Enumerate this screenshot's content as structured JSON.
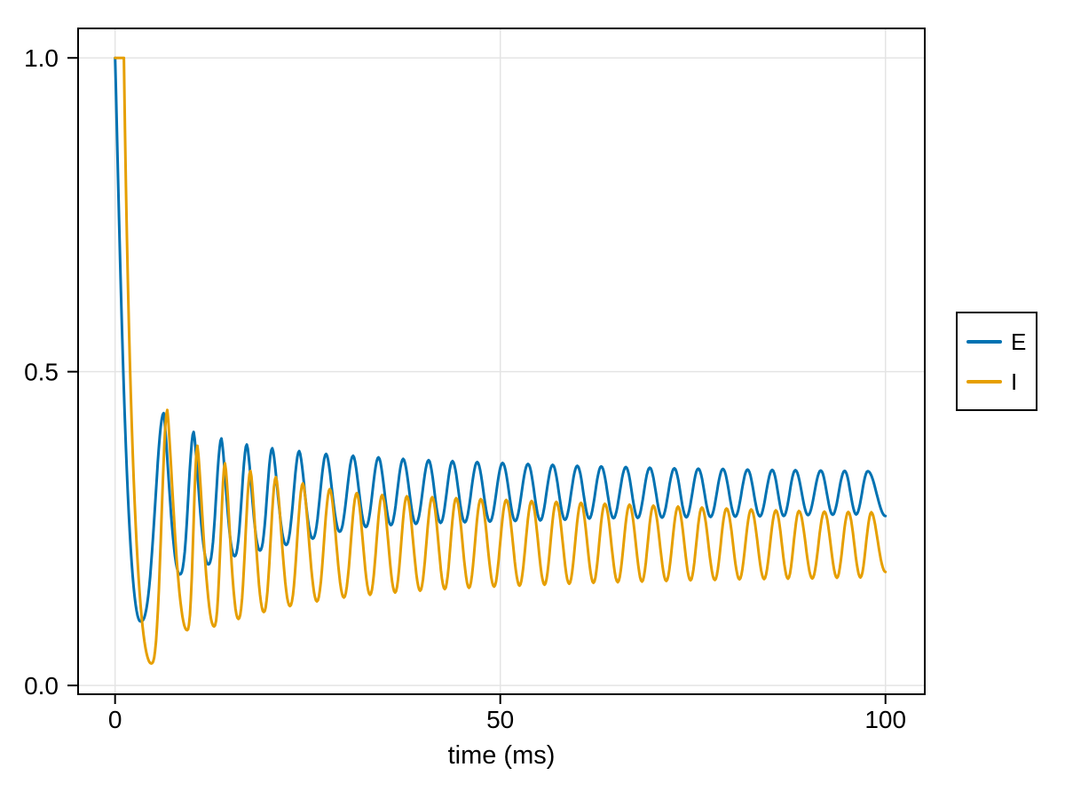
{
  "chart_data": {
    "type": "line",
    "title": "",
    "xlabel": "time (ms)",
    "ylabel": "",
    "xlim": [
      -4.8,
      105.1
    ],
    "ylim": [
      -0.014,
      1.047
    ],
    "xticks": {
      "values": [
        0,
        50,
        100
      ],
      "labels": [
        "0",
        "50",
        "100"
      ]
    },
    "yticks": {
      "values": [
        0.0,
        0.5,
        1.0
      ],
      "labels": [
        "0.0",
        "0.5",
        "1.0"
      ]
    },
    "grid": true,
    "grid_color": "#e4e4e4",
    "spine_color": "#000000",
    "tick_color": "#000000",
    "background": "#ffffff",
    "legend": {
      "position": "right-outside",
      "border_color": "#000000",
      "background": "#ffffff",
      "entries": [
        {
          "label": "E",
          "color": "#0072B2"
        },
        {
          "label": "I",
          "color": "#E69F00"
        }
      ]
    },
    "series": [
      {
        "name": "E",
        "color": "#0072B2",
        "line_width": 3,
        "keypoints": [
          [
            0,
            1.0
          ],
          [
            3.3,
            0.102,
            0.55
          ],
          [
            6.3,
            0.434,
            1.35
          ],
          [
            8.4,
            0.177,
            0.7
          ],
          [
            10.2,
            0.404,
            1.3
          ],
          [
            12.1,
            0.193,
            0.72
          ],
          [
            13.8,
            0.3935,
            1.25
          ],
          [
            15.5,
            0.206,
            0.75
          ],
          [
            17.1,
            0.384,
            1.2
          ],
          [
            18.8,
            0.215,
            0.78
          ],
          [
            20.4,
            0.378,
            1.17
          ],
          [
            22.2,
            0.224,
            0.8
          ],
          [
            23.9,
            0.3735,
            1.14
          ],
          [
            25.65,
            0.234,
            0.84
          ],
          [
            27.4,
            0.369,
            1.1
          ],
          [
            29.15,
            0.245,
            0.88
          ],
          [
            30.9,
            0.366,
            1.08
          ],
          [
            32.55,
            0.2525,
            0.9
          ],
          [
            34.2,
            0.3635,
            1.06
          ],
          [
            35.8,
            0.2555,
            0.93
          ],
          [
            37.4,
            0.361,
            1.05
          ],
          [
            39.05,
            0.2575,
            0.95
          ],
          [
            40.7,
            0.359,
            1.04
          ],
          [
            42.25,
            0.259,
            0.96
          ],
          [
            43.8,
            0.3575,
            1.03
          ],
          [
            45.4,
            0.26,
            0.97
          ],
          [
            47,
            0.356,
            1.02
          ],
          [
            48.65,
            0.261,
            0.98
          ],
          [
            50.3,
            0.3545,
            1.01
          ],
          [
            51.95,
            0.262
          ],
          [
            53.6,
            0.353
          ],
          [
            55.2,
            0.263
          ],
          [
            56.8,
            0.3515
          ],
          [
            58.4,
            0.264
          ],
          [
            60,
            0.35
          ],
          [
            61.55,
            0.266
          ],
          [
            63.1,
            0.349
          ],
          [
            64.7,
            0.2665
          ],
          [
            66.3,
            0.348
          ],
          [
            67.85,
            0.267
          ],
          [
            69.4,
            0.347
          ],
          [
            71,
            0.2675
          ],
          [
            72.6,
            0.346
          ],
          [
            74.15,
            0.268
          ],
          [
            75.7,
            0.3455
          ],
          [
            77.3,
            0.2685
          ],
          [
            78.9,
            0.345
          ],
          [
            80.5,
            0.269
          ],
          [
            82.1,
            0.344
          ],
          [
            83.7,
            0.2695
          ],
          [
            85.3,
            0.3435
          ],
          [
            86.8,
            0.27
          ],
          [
            88.3,
            0.343
          ],
          [
            89.95,
            0.2715
          ],
          [
            91.6,
            0.3425
          ],
          [
            93.15,
            0.272
          ],
          [
            94.7,
            0.342
          ],
          [
            96.2,
            0.2725
          ],
          [
            97.7,
            0.3415
          ],
          [
            100,
            0.27
          ]
        ]
      },
      {
        "name": "I",
        "color": "#E69F00",
        "line_width": 3,
        "keypoints": [
          [
            0,
            1.0
          ],
          [
            1.15,
            1.0
          ],
          [
            4.7,
            0.035,
            0.45
          ],
          [
            6.78,
            0.439,
            1.35
          ],
          [
            9.35,
            0.088,
            0.65
          ],
          [
            10.68,
            0.382,
            1.3
          ],
          [
            12.85,
            0.094,
            0.7
          ],
          [
            14.27,
            0.354,
            1.25
          ],
          [
            16,
            0.106,
            0.75
          ],
          [
            17.57,
            0.342,
            1.2
          ],
          [
            19.3,
            0.117,
            0.78
          ],
          [
            20.87,
            0.332,
            1.15
          ],
          [
            22.7,
            0.1265,
            0.82
          ],
          [
            24.37,
            0.322,
            1.12
          ],
          [
            26.2,
            0.134,
            0.86
          ],
          [
            27.87,
            0.313,
            1.09
          ],
          [
            29.7,
            0.14,
            0.9
          ],
          [
            31.37,
            0.3065,
            1.06
          ],
          [
            33.1,
            0.1445,
            0.92
          ],
          [
            34.67,
            0.3035,
            1.04
          ],
          [
            36.35,
            0.148,
            0.94
          ],
          [
            37.87,
            0.3015,
            1.03
          ],
          [
            39.6,
            0.151,
            0.96
          ],
          [
            41.17,
            0.3,
            1.02
          ],
          [
            42.8,
            0.1535,
            0.97
          ],
          [
            44.27,
            0.2985,
            1.01
          ],
          [
            45.95,
            0.1555,
            0.98
          ],
          [
            47.47,
            0.297,
            1.01
          ],
          [
            49.2,
            0.1575,
            0.99
          ],
          [
            50.77,
            0.2955
          ],
          [
            52.5,
            0.159
          ],
          [
            54.07,
            0.294
          ],
          [
            55.75,
            0.1605
          ],
          [
            57.27,
            0.2925
          ],
          [
            58.95,
            0.162
          ],
          [
            60.47,
            0.291
          ],
          [
            62.1,
            0.1635
          ],
          [
            63.57,
            0.2895
          ],
          [
            65.25,
            0.1645
          ],
          [
            66.77,
            0.288
          ],
          [
            68.4,
            0.1655
          ],
          [
            69.87,
            0.2865
          ],
          [
            71.55,
            0.1665
          ],
          [
            73.07,
            0.285
          ],
          [
            74.7,
            0.1675
          ],
          [
            76.17,
            0.2835
          ],
          [
            77.85,
            0.168
          ],
          [
            79.37,
            0.282
          ],
          [
            81.05,
            0.169
          ],
          [
            82.57,
            0.2805
          ],
          [
            84.25,
            0.1695
          ],
          [
            85.77,
            0.279
          ],
          [
            87.35,
            0.17
          ],
          [
            88.77,
            0.278
          ],
          [
            90.5,
            0.1705
          ],
          [
            92.07,
            0.277
          ],
          [
            93.7,
            0.1715
          ],
          [
            95.17,
            0.2765
          ],
          [
            96.75,
            0.172
          ],
          [
            98.17,
            0.276
          ],
          [
            100,
            0.181,
            0.9
          ]
        ]
      }
    ]
  }
}
